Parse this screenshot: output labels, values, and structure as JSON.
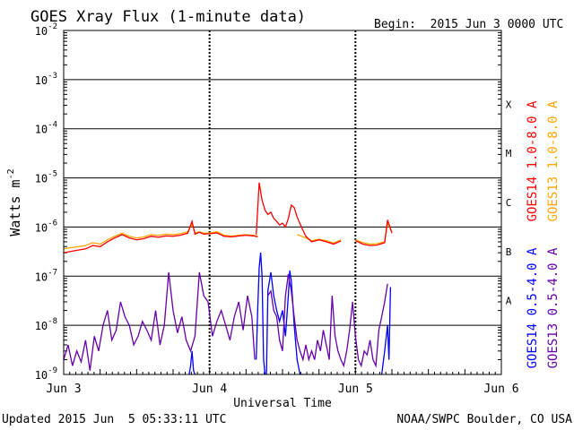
{
  "header": {
    "title": "GOES Xray Flux (1-minute data)",
    "begin": "Begin:  2015 Jun 3 0000 UTC"
  },
  "footer": {
    "updated": "Updated 2015 Jun  5 05:33:11 UTC",
    "credit": "NOAA/SWPC Boulder, CO USA"
  },
  "chart_data": {
    "type": "line",
    "title": "GOES Xray Flux (1-minute data)",
    "xlabel": "Universal Time",
    "ylabel": "Watts m-2",
    "ylabel_parts": {
      "base": "Watts m",
      "sup": "-2"
    },
    "xlim": [
      0,
      3
    ],
    "x_unit": "days since 2015 Jun 3 0000 UTC",
    "x_ticks": [
      {
        "x": 0,
        "label": "Jun 3"
      },
      {
        "x": 1,
        "label": "Jun 4"
      },
      {
        "x": 2,
        "label": "Jun 5"
      },
      {
        "x": 3,
        "label": "Jun 6"
      }
    ],
    "y_scale": "log",
    "ylim": [
      1e-09,
      0.01
    ],
    "y_ticks": [
      {
        "exp": -9,
        "label": "10",
        "sup": "-9"
      },
      {
        "exp": -8,
        "label": "10",
        "sup": "-8"
      },
      {
        "exp": -7,
        "label": "10",
        "sup": "-7"
      },
      {
        "exp": -6,
        "label": "10",
        "sup": "-6"
      },
      {
        "exp": -5,
        "label": "10",
        "sup": "-5"
      },
      {
        "exp": -4,
        "label": "10",
        "sup": "-4"
      },
      {
        "exp": -3,
        "label": "10",
        "sup": "-3"
      },
      {
        "exp": -2,
        "label": "10",
        "sup": "-2"
      }
    ],
    "flare_classes": [
      {
        "label": "A",
        "exp": -7.5
      },
      {
        "label": "B",
        "exp": -6.5
      },
      {
        "label": "C",
        "exp": -5.5
      },
      {
        "label": "M",
        "exp": -4.5
      },
      {
        "label": "X",
        "exp": -3.5
      }
    ],
    "grid": true,
    "legend": [
      {
        "text": "GOES14 1.0-8.0 A",
        "color": "#ff0000",
        "position": "right-upper"
      },
      {
        "text": "GOES13 1.0-8.0 A",
        "color": "#ffa500",
        "position": "right-upper"
      },
      {
        "text": "GOES14 0.5-4.0 A",
        "color": "#0000ff",
        "position": "right-lower"
      },
      {
        "text": "GOES13 0.5-4.0 A",
        "color": "#6600aa",
        "position": "right-lower"
      }
    ],
    "series": [
      {
        "name": "GOES13 1.0-8.0 A",
        "color": "#ffa500",
        "segments": [
          {
            "x": [
              0.0,
              0.05,
              0.1,
              0.15,
              0.2,
              0.25,
              0.3,
              0.35,
              0.4,
              0.45,
              0.5,
              0.55,
              0.6,
              0.65,
              0.7,
              0.75,
              0.8,
              0.85,
              0.88,
              0.9,
              0.93,
              0.96,
              1.0,
              1.05,
              1.1,
              1.15,
              1.2,
              1.25,
              1.3,
              1.33
            ],
            "y": [
              3.6e-07,
              3.8e-07,
              4e-07,
              4.2e-07,
              4.8e-07,
              4.5e-07,
              5.5e-07,
              6.5e-07,
              7.5e-07,
              6.5e-07,
              6e-07,
              6.3e-07,
              7e-07,
              6.8e-07,
              7.2e-07,
              7e-07,
              7.3e-07,
              8e-07,
              1.15e-06,
              7.6e-07,
              8e-07,
              7.5e-07,
              7.6e-07,
              8e-07,
              6.8e-07,
              6.5e-07,
              6.8e-07,
              7e-07,
              6.8e-07,
              6.5e-07
            ]
          },
          {
            "x": [
              1.6,
              1.63,
              1.66,
              1.7,
              1.75,
              1.8,
              1.85,
              1.9
            ],
            "y": [
              7e-07,
              6.5e-07,
              6e-07,
              5.3e-07,
              5.6e-07,
              5.3e-07,
              4.7e-07,
              5.5e-07
            ]
          },
          {
            "x": [
              2.0,
              2.05,
              2.1,
              2.15,
              2.2,
              2.22,
              2.25
            ],
            "y": [
              5.5e-07,
              4.8e-07,
              4.5e-07,
              4.6e-07,
              5e-07,
              1.2e-06,
              8e-07
            ]
          }
        ]
      },
      {
        "name": "GOES14 1.0-8.0 A",
        "color": "#ff0000",
        "segments": [
          {
            "x": [
              0.0,
              0.05,
              0.1,
              0.15,
              0.2,
              0.25,
              0.3,
              0.35,
              0.4,
              0.45,
              0.5,
              0.55,
              0.6,
              0.65,
              0.7,
              0.75,
              0.8,
              0.85,
              0.88,
              0.9,
              0.93,
              0.96,
              1.0,
              1.05,
              1.1,
              1.15,
              1.2,
              1.25,
              1.3,
              1.33
            ],
            "y": [
              3e-07,
              3.2e-07,
              3.4e-07,
              3.6e-07,
              4.2e-07,
              4e-07,
              5e-07,
              6e-07,
              7e-07,
              6e-07,
              5.5e-07,
              5.8e-07,
              6.5e-07,
              6.2e-07,
              6.6e-07,
              6.5e-07,
              6.8e-07,
              7.5e-07,
              1.3e-06,
              7.2e-07,
              7.8e-07,
              7.2e-07,
              7.3e-07,
              7.6e-07,
              6.5e-07,
              6.3e-07,
              6.6e-07,
              6.8e-07,
              6.6e-07,
              6.3e-07
            ]
          },
          {
            "x": [
              1.32,
              1.34,
              1.36,
              1.38,
              1.4,
              1.42,
              1.44,
              1.46,
              1.48,
              1.5,
              1.52,
              1.54,
              1.56,
              1.58,
              1.6,
              1.63,
              1.66,
              1.7,
              1.75,
              1.8,
              1.85,
              1.9
            ],
            "y": [
              7e-07,
              8e-06,
              3.5e-06,
              2.2e-06,
              1.8e-06,
              2e-06,
              1.5e-06,
              1.3e-06,
              1.1e-06,
              1.2e-06,
              1e-06,
              1.5e-06,
              2.8e-06,
              2.5e-06,
              1.6e-06,
              1e-06,
              6.5e-07,
              5e-07,
              5.5e-07,
              5e-07,
              4.5e-07,
              5.2e-07
            ]
          },
          {
            "x": [
              2.0,
              2.05,
              2.1,
              2.15,
              2.2,
              2.22,
              2.25
            ],
            "y": [
              5.3e-07,
              4.5e-07,
              4.2e-07,
              4.3e-07,
              4.8e-07,
              1.4e-06,
              7.5e-07
            ]
          }
        ]
      },
      {
        "name": "GOES14 0.5-4.0 A",
        "color": "#0000ff",
        "segments": [
          {
            "x": [
              0.86,
              0.87,
              0.88,
              0.89,
              0.9
            ],
            "y": [
              1e-09,
              1.5e-09,
              3e-09,
              1.2e-09,
              1e-09
            ]
          },
          {
            "x": [
              1.32,
              1.33,
              1.34,
              1.35,
              1.36,
              1.37,
              1.38,
              1.39,
              1.4,
              1.42,
              1.44,
              1.46,
              1.48,
              1.5,
              1.52,
              1.54,
              1.55,
              1.56,
              1.57,
              1.58,
              1.6,
              1.62,
              1.64,
              1.66
            ],
            "y": [
              2e-09,
              2e-08,
              1.5e-07,
              3e-07,
              1e-07,
              2e-09,
              1e-09,
              1e-09,
              5e-08,
              1.2e-07,
              4e-08,
              2e-08,
              1.2e-08,
              2e-08,
              6e-09,
              4e-08,
              1.3e-07,
              8e-08,
              3e-08,
              1e-08,
              2e-09,
              1e-09,
              1e-09,
              1e-09
            ]
          },
          {
            "x": [
              2.18,
              2.2,
              2.22,
              2.23,
              2.24
            ],
            "y": [
              1e-09,
              3e-09,
              1e-08,
              2e-09,
              6e-08
            ]
          }
        ]
      },
      {
        "name": "GOES13 0.5-4.0 A",
        "color": "#6600aa",
        "segments": [
          {
            "x": [
              0.0,
              0.03,
              0.06,
              0.09,
              0.12,
              0.15,
              0.18,
              0.21,
              0.24,
              0.27,
              0.3,
              0.33,
              0.36,
              0.39,
              0.42,
              0.45,
              0.48,
              0.51,
              0.54,
              0.57,
              0.6,
              0.63,
              0.66,
              0.69,
              0.72,
              0.75,
              0.78,
              0.81,
              0.84,
              0.87,
              0.9,
              0.93,
              0.96,
              0.99,
              1.02,
              1.05,
              1.08,
              1.11,
              1.14,
              1.17,
              1.2,
              1.23,
              1.26,
              1.29,
              1.31
            ],
            "y": [
              2e-09,
              4e-09,
              1.5e-09,
              3e-09,
              1.8e-09,
              5e-09,
              1.2e-09,
              6e-09,
              3e-09,
              1e-08,
              2e-08,
              5e-09,
              8e-09,
              3e-08,
              1.5e-08,
              1e-08,
              4e-09,
              6e-09,
              1.2e-08,
              8e-09,
              5e-09,
              2e-08,
              4e-09,
              1e-08,
              1.2e-07,
              2e-08,
              7e-09,
              1.5e-08,
              5e-09,
              3e-09,
              6e-09,
              1.2e-07,
              4e-08,
              3e-08,
              6e-09,
              1.2e-08,
              2e-08,
              1e-08,
              5e-09,
              1.5e-08,
              3e-08,
              8e-09,
              4e-08,
              1.5e-08,
              2e-09
            ]
          },
          {
            "x": [
              1.4,
              1.42,
              1.44,
              1.46,
              1.48,
              1.5,
              1.52,
              1.54,
              1.56,
              1.58,
              1.6,
              1.62,
              1.64,
              1.66,
              1.68,
              1.7,
              1.72,
              1.74,
              1.76,
              1.78,
              1.8,
              1.82,
              1.84,
              1.86,
              1.88,
              1.9,
              1.92,
              1.94,
              1.96,
              1.98,
              2.0,
              2.02,
              2.04,
              2.06,
              2.08,
              2.1,
              2.12,
              2.14,
              2.16,
              2.18,
              2.2,
              2.22
            ],
            "y": [
              4e-08,
              5e-08,
              2e-08,
              1.5e-08,
              5e-09,
              3e-09,
              4e-08,
              1.1e-07,
              5e-08,
              1.5e-08,
              5e-09,
              3e-09,
              2e-09,
              4e-09,
              2e-09,
              3e-09,
              2e-09,
              5e-09,
              3e-09,
              8e-09,
              4e-09,
              2e-09,
              4e-08,
              6e-09,
              3e-09,
              2e-09,
              1.5e-09,
              3e-09,
              8e-09,
              3e-08,
              6e-09,
              2e-09,
              1.5e-09,
              3e-09,
              2.5e-09,
              5e-09,
              2e-09,
              1.5e-09,
              8e-09,
              1.5e-08,
              3e-08,
              7e-08
            ]
          }
        ]
      }
    ]
  }
}
